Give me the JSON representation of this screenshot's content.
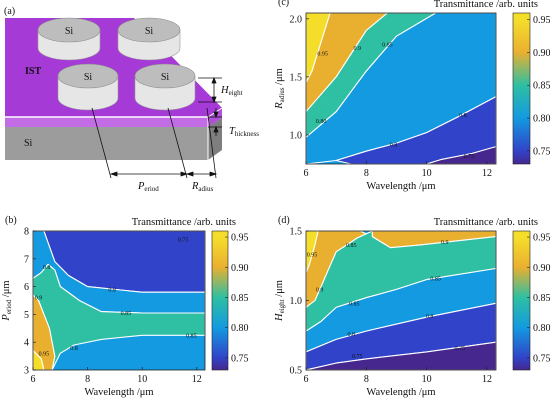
{
  "colors": {
    "c095": "#F5DE2A",
    "c090": "#E9B030",
    "c085": "#2FBFA2",
    "c080": "#139AE0",
    "c075": "#3143C8",
    "c070": "#45278E",
    "substrate_top": "#A53AD6",
    "substrate_side": "#C26CE6",
    "si_base": "#9C9C9C",
    "contour_line": "#FFFFFF"
  },
  "panel_a": {
    "label": "(a)",
    "layer_label": "IST",
    "disk_labels": [
      "Si",
      "Si",
      "Si",
      "Si"
    ],
    "base_label": "Si",
    "height_label": {
      "main": "H",
      "sub": "eight"
    },
    "thickness_label": {
      "main": "T",
      "sub": "hickness"
    },
    "period_label": {
      "main": "P",
      "sub": "eriod"
    },
    "radius_label": {
      "main": "R",
      "sub": "adius"
    }
  },
  "chart_data": [
    {
      "id": "b",
      "panel_label": "(b)",
      "type": "heatmap",
      "title": "Transmittance /arb. units",
      "xlabel": "Wavelength /μm",
      "ylabel": {
        "main": "P",
        "sub": "eriod",
        "unit": " /μm"
      },
      "xlim": [
        6,
        12.3
      ],
      "ylim": [
        3,
        8
      ],
      "xticks": [
        "6",
        "8",
        "10",
        "12"
      ],
      "yticks": [
        "3",
        "4",
        "5",
        "6",
        "7",
        "8"
      ],
      "colorbar": {
        "range": [
          0.73,
          0.96
        ],
        "ticks": [
          "0.75",
          "0.80",
          "0.85",
          "0.90",
          "0.95"
        ]
      },
      "regions": [
        {
          "level": 0.75,
          "polygon": [
            [
              6,
              8
            ],
            [
              12.3,
              8
            ],
            [
              12.3,
              5.8
            ],
            [
              10,
              5.8
            ],
            [
              8,
              6
            ],
            [
              7.3,
              6.4
            ],
            [
              6.8,
              6.9
            ],
            [
              6.4,
              8
            ]
          ]
        },
        {
          "level": 0.8,
          "polygon": [
            [
              6.4,
              8
            ],
            [
              6.8,
              6.9
            ],
            [
              7.3,
              6.4
            ],
            [
              8,
              6
            ],
            [
              10,
              5.8
            ],
            [
              12.3,
              5.8
            ],
            [
              12.3,
              5.05
            ],
            [
              10,
              5.05
            ],
            [
              8.5,
              5.1
            ],
            [
              7.7,
              5.5
            ],
            [
              7,
              6
            ],
            [
              6.8,
              6.6
            ],
            [
              6.55,
              6.8
            ],
            [
              6.3,
              6.5
            ],
            [
              6,
              6.3
            ],
            [
              6,
              8
            ]
          ]
        },
        {
          "level": 0.85,
          "polygon": [
            [
              6,
              6.3
            ],
            [
              6.3,
              6.5
            ],
            [
              6.55,
              6.8
            ],
            [
              6.8,
              6.6
            ],
            [
              7,
              6
            ],
            [
              7.7,
              5.5
            ],
            [
              8.5,
              5.1
            ],
            [
              10,
              5.05
            ],
            [
              12.3,
              5.05
            ],
            [
              12.3,
              4.25
            ],
            [
              10,
              4.25
            ],
            [
              8.5,
              4.1
            ],
            [
              7.5,
              3.9
            ],
            [
              7,
              3.6
            ],
            [
              6.7,
              3
            ],
            [
              6.8,
              3.5
            ],
            [
              6.6,
              4.5
            ],
            [
              6.2,
              5.5
            ],
            [
              6,
              5.7
            ]
          ]
        },
        {
          "level": 0.9,
          "polygon": [
            [
              6,
              5.7
            ],
            [
              6.2,
              5.5
            ],
            [
              6.6,
              4.5
            ],
            [
              6.8,
              3.5
            ],
            [
              6.7,
              3
            ],
            [
              6.4,
              3
            ],
            [
              6.3,
              3.4
            ],
            [
              6.1,
              3.6
            ],
            [
              6,
              3.7
            ]
          ]
        },
        {
          "level": 0.95,
          "polygon": [
            [
              6,
              3.7
            ],
            [
              6.1,
              3.6
            ],
            [
              6.3,
              3.4
            ],
            [
              6.4,
              3
            ],
            [
              6,
              3
            ]
          ]
        }
      ],
      "contour_labels": [
        {
          "text": "0.75",
          "x": 11.5,
          "y": 7.7
        },
        {
          "text": "0.8",
          "x": 8.9,
          "y": 5.9
        },
        {
          "text": "0.85",
          "x": 9.4,
          "y": 5.05
        },
        {
          "text": "0.85",
          "x": 11.8,
          "y": 4.25
        },
        {
          "text": "0.8",
          "x": 6.5,
          "y": 6.7
        },
        {
          "text": "0.9",
          "x": 6.2,
          "y": 5.6
        },
        {
          "text": "0.95",
          "x": 6.4,
          "y": 3.6
        },
        {
          "text": "0.8",
          "x": 7.5,
          "y": 3.8
        }
      ]
    },
    {
      "id": "c",
      "panel_label": "(c)",
      "type": "heatmap",
      "title": "Transmittance /arb. units",
      "xlabel": "Wavelength /μm",
      "ylabel": {
        "main": "R",
        "sub": "adius",
        "unit": " /μm"
      },
      "xlim": [
        6,
        12.3
      ],
      "ylim": [
        0.75,
        2.05
      ],
      "xticks": [
        "6",
        "8",
        "10",
        "12"
      ],
      "yticks": [
        "1.0",
        "1.5",
        "2.0"
      ],
      "colorbar": {
        "range": [
          0.73,
          0.96
        ],
        "ticks": [
          "0.75",
          "0.80",
          "0.85",
          "0.90",
          "0.95"
        ]
      },
      "regions": [
        {
          "level": 0.95,
          "polygon": [
            [
              6,
              2.05
            ],
            [
              6.8,
              2.05
            ],
            [
              6.5,
              1.8
            ],
            [
              6.2,
              1.55
            ],
            [
              6,
              1.45
            ]
          ]
        },
        {
          "level": 0.9,
          "polygon": [
            [
              6.8,
              2.05
            ],
            [
              8.7,
              2.05
            ],
            [
              8,
              1.9
            ],
            [
              7,
              1.5
            ],
            [
              6.5,
              1.35
            ],
            [
              6,
              1.2
            ],
            [
              6,
              1.45
            ],
            [
              6.2,
              1.55
            ],
            [
              6.5,
              1.8
            ]
          ]
        },
        {
          "level": 0.85,
          "polygon": [
            [
              8.7,
              2.05
            ],
            [
              10.3,
              2.05
            ],
            [
              9,
              1.85
            ],
            [
              8,
              1.55
            ],
            [
              7,
              1.2
            ],
            [
              6,
              0.98
            ],
            [
              6,
              1.2
            ],
            [
              6.5,
              1.35
            ],
            [
              7,
              1.5
            ],
            [
              8,
              1.9
            ]
          ]
        },
        {
          "level": 0.8,
          "polygon": [
            [
              6,
              0.98
            ],
            [
              7,
              1.2
            ],
            [
              8,
              1.55
            ],
            [
              9,
              1.85
            ],
            [
              10.3,
              2.05
            ],
            [
              12.3,
              2.05
            ],
            [
              12.3,
              1.33
            ],
            [
              11,
              1.15
            ],
            [
              10,
              1.02
            ],
            [
              9,
              0.93
            ],
            [
              8,
              0.86
            ],
            [
              7,
              0.78
            ],
            [
              6,
              0.75
            ]
          ]
        },
        {
          "level": 0.75,
          "polygon": [
            [
              7,
              0.78
            ],
            [
              8,
              0.86
            ],
            [
              9,
              0.93
            ],
            [
              10,
              1.02
            ],
            [
              11,
              1.15
            ],
            [
              12.3,
              1.33
            ],
            [
              12.3,
              0.9
            ],
            [
              11.5,
              0.84
            ],
            [
              10.5,
              0.79
            ],
            [
              10,
              0.75
            ],
            [
              7.5,
              0.75
            ]
          ]
        },
        {
          "level": 0.7,
          "polygon": [
            [
              10,
              0.75
            ],
            [
              10.5,
              0.79
            ],
            [
              11.5,
              0.84
            ],
            [
              12.3,
              0.9
            ],
            [
              12.3,
              0.75
            ]
          ]
        }
      ],
      "contour_labels": [
        {
          "text": "0.95",
          "x": 6.55,
          "y": 1.7
        },
        {
          "text": "0.9",
          "x": 7.7,
          "y": 1.75
        },
        {
          "text": "0.85",
          "x": 8.7,
          "y": 1.78
        },
        {
          "text": "0.80",
          "x": 6.5,
          "y": 1.12
        },
        {
          "text": "0.8",
          "x": 11.2,
          "y": 1.17
        },
        {
          "text": "0.8",
          "x": 8.9,
          "y": 0.92
        },
        {
          "text": "0.75",
          "x": 11.4,
          "y": 0.82
        }
      ]
    },
    {
      "id": "d",
      "panel_label": "(d)",
      "type": "heatmap",
      "title": "Transmittance /arb. units",
      "xlabel": "Wavelength /μm",
      "ylabel": {
        "main": "H",
        "sub": "eight",
        "unit": " /μm"
      },
      "xlim": [
        6,
        12.3
      ],
      "ylim": [
        0.5,
        1.5
      ],
      "xticks": [
        "6",
        "8",
        "10",
        "12"
      ],
      "yticks": [
        "0.5",
        "1.0",
        "1.5"
      ],
      "colorbar": {
        "range": [
          0.73,
          0.96
        ],
        "ticks": [
          "0.75",
          "0.80",
          "0.85",
          "0.90",
          "0.95"
        ]
      },
      "regions": [
        {
          "level": 0.95,
          "polygon": [
            [
              6,
              1.5
            ],
            [
              6.4,
              1.5
            ],
            [
              6.3,
              1.4
            ],
            [
              6.1,
              1.25
            ],
            [
              6,
              1.2
            ]
          ]
        },
        {
          "level": 0.9,
          "polygon": [
            [
              6.4,
              1.5
            ],
            [
              7.8,
              1.5
            ],
            [
              8.2,
              1.46
            ],
            [
              8.8,
              1.38
            ],
            [
              9.8,
              1.4
            ],
            [
              12.3,
              1.46
            ],
            [
              12.3,
              1.5
            ],
            [
              12.3,
              1.5
            ],
            [
              8.2,
              1.5
            ],
            [
              7.7,
              1.45
            ],
            [
              7,
              1.35
            ],
            [
              6.7,
              1.2
            ],
            [
              6.5,
              1.1
            ],
            [
              6.3,
              1.0
            ],
            [
              6,
              0.95
            ],
            [
              6,
              1.2
            ],
            [
              6.1,
              1.25
            ],
            [
              6.3,
              1.4
            ]
          ]
        },
        {
          "level": 0.85,
          "polygon": [
            [
              6,
              0.95
            ],
            [
              6.3,
              1.0
            ],
            [
              6.5,
              1.1
            ],
            [
              6.7,
              1.2
            ],
            [
              7,
              1.35
            ],
            [
              7.7,
              1.45
            ],
            [
              8.2,
              1.5
            ],
            [
              8.2,
              1.46
            ],
            [
              8.8,
              1.38
            ],
            [
              9.8,
              1.4
            ],
            [
              12.3,
              1.46
            ],
            [
              12.3,
              1.23
            ],
            [
              10,
              1.15
            ],
            [
              9,
              1.08
            ],
            [
              8,
              1.02
            ],
            [
              7,
              0.95
            ],
            [
              6.5,
              0.85
            ],
            [
              6,
              0.78
            ]
          ]
        },
        {
          "level": 0.8,
          "polygon": [
            [
              6,
              0.78
            ],
            [
              6.5,
              0.85
            ],
            [
              7,
              0.95
            ],
            [
              8,
              1.02
            ],
            [
              9,
              1.08
            ],
            [
              10,
              1.15
            ],
            [
              12.3,
              1.23
            ],
            [
              12.3,
              0.98
            ],
            [
              10,
              0.88
            ],
            [
              8,
              0.78
            ],
            [
              7,
              0.72
            ],
            [
              6,
              0.63
            ]
          ]
        },
        {
          "level": 0.75,
          "polygon": [
            [
              6,
              0.63
            ],
            [
              7,
              0.72
            ],
            [
              8,
              0.78
            ],
            [
              10,
              0.88
            ],
            [
              12.3,
              0.98
            ],
            [
              12.3,
              0.7
            ],
            [
              10,
              0.63
            ],
            [
              8,
              0.58
            ],
            [
              7,
              0.55
            ],
            [
              6,
              0.5
            ]
          ]
        },
        {
          "level": 0.7,
          "polygon": [
            [
              6,
              0.5
            ],
            [
              7,
              0.55
            ],
            [
              8,
              0.58
            ],
            [
              10,
              0.63
            ],
            [
              12.3,
              0.7
            ],
            [
              12.3,
              0.5
            ]
          ]
        }
      ],
      "contour_labels": [
        {
          "text": "0.95",
          "x": 6.2,
          "y": 1.33
        },
        {
          "text": "0.9",
          "x": 6.45,
          "y": 1.08
        },
        {
          "text": "0.85",
          "x": 7.5,
          "y": 1.4
        },
        {
          "text": "0.9",
          "x": 10.6,
          "y": 1.42
        },
        {
          "text": "0.85",
          "x": 10.3,
          "y": 1.16
        },
        {
          "text": "0.85",
          "x": 7.6,
          "y": 0.98
        },
        {
          "text": "0.8",
          "x": 10.1,
          "y": 0.89
        },
        {
          "text": "0.8",
          "x": 7.5,
          "y": 0.76
        },
        {
          "text": "0.75",
          "x": 7.7,
          "y": 0.6
        },
        {
          "text": "0.75",
          "x": 11.1,
          "y": 0.66
        }
      ]
    }
  ]
}
